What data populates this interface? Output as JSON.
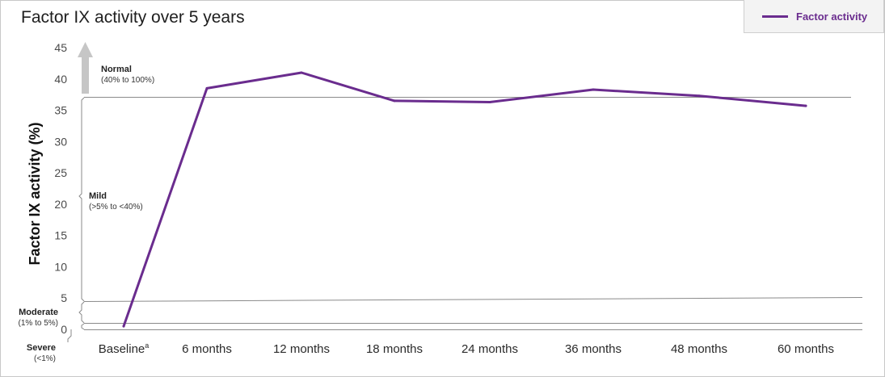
{
  "chart_data": {
    "type": "line",
    "title": "Factor IX activity over 5 years",
    "ylabel": "Factor IX activity (%)",
    "ylim": [
      0,
      45
    ],
    "yticks": [
      0,
      5,
      10,
      15,
      20,
      25,
      30,
      35,
      40,
      45
    ],
    "categories": [
      "Baseline",
      "6 months",
      "12 months",
      "18 months",
      "24 months",
      "36 months",
      "48 months",
      "60 months"
    ],
    "baseline_superscript": "a",
    "series": [
      {
        "name": "Factor activity",
        "values": [
          0.5,
          38.5,
          41,
          36.5,
          36.3,
          38.3,
          37.3,
          35.7
        ],
        "color": "#6a2c8e"
      }
    ],
    "bands": {
      "normal": {
        "label": "Normal",
        "range": "(40% to 100%)"
      },
      "mild": {
        "label": "Mild",
        "range": "(>5% to <40%)"
      },
      "moderate": {
        "label": "Moderate",
        "range": "(1% to 5%)"
      },
      "severe": {
        "label": "Severe",
        "range": "(<1%)"
      }
    },
    "legend_position": "top-right",
    "grid": false
  }
}
